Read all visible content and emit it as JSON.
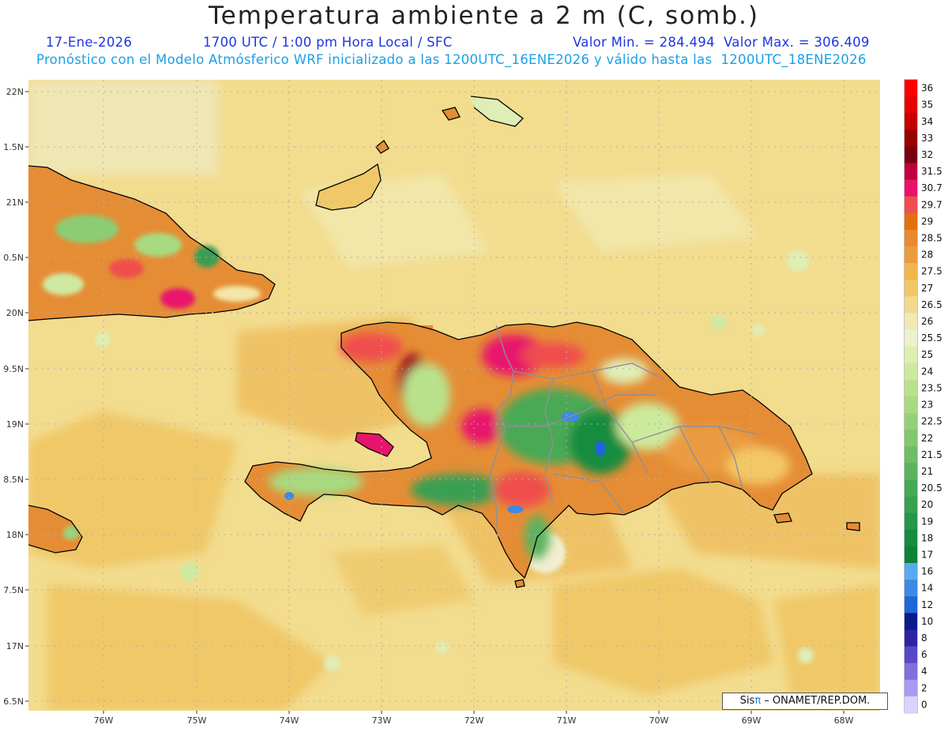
{
  "header": {
    "title": "Temperatura ambiente a 2 m (C, somb.)",
    "date": "17-Ene-2026",
    "time": "1700 UTC / 1:00 pm Hora Local / SFC",
    "minmax": "Valor Min. = 284.494  Valor Max. = 306.409",
    "model_line": "Pronóstico con el Modelo Atmósferico WRF inicializado a las 1200UTC_16ENE2026 y válido hasta las  1200UTC_18ENE2026"
  },
  "map": {
    "lon_labels": [
      "76W",
      "75W",
      "74W",
      "73W",
      "72W",
      "71W",
      "70W",
      "69W",
      "68W"
    ],
    "lat_labels": [
      "22N",
      "1.5N",
      "21N",
      "0.5N",
      "20N",
      "9.5N",
      "19N",
      "8.5N",
      "18N",
      "7.5N",
      "17N",
      "6.5N"
    ],
    "grid": true
  },
  "legend": {
    "items": [
      {
        "label": "36",
        "color": "#ff0000"
      },
      {
        "label": "35",
        "color": "#e60000"
      },
      {
        "label": "34",
        "color": "#c40000"
      },
      {
        "label": "33",
        "color": "#990000"
      },
      {
        "label": "32",
        "color": "#7a0010"
      },
      {
        "label": "31.5",
        "color": "#c0003c"
      },
      {
        "label": "30.7",
        "color": "#e8146c"
      },
      {
        "label": "29.7",
        "color": "#f04e4e"
      },
      {
        "label": "29",
        "color": "#e2700e"
      },
      {
        "label": "28.5",
        "color": "#e88a2e"
      },
      {
        "label": "28",
        "color": "#eb9c43"
      },
      {
        "label": "27.5",
        "color": "#f0b64c"
      },
      {
        "label": "27",
        "color": "#f3c765"
      },
      {
        "label": "26.5",
        "color": "#f2da8d"
      },
      {
        "label": "26",
        "color": "#f2e8b4"
      },
      {
        "label": "25.5",
        "color": "#eff0cc"
      },
      {
        "label": "25",
        "color": "#dcefb0"
      },
      {
        "label": "24",
        "color": "#ccea9c"
      },
      {
        "label": "23.5",
        "color": "#b9e28d"
      },
      {
        "label": "23",
        "color": "#a8da80"
      },
      {
        "label": "22.5",
        "color": "#95d077"
      },
      {
        "label": "22",
        "color": "#83c76e"
      },
      {
        "label": "21.5",
        "color": "#6fbd66"
      },
      {
        "label": "21",
        "color": "#5bb35e"
      },
      {
        "label": "20.5",
        "color": "#48a955"
      },
      {
        "label": "20",
        "color": "#38a04f"
      },
      {
        "label": "19",
        "color": "#269648"
      },
      {
        "label": "18",
        "color": "#168c41"
      },
      {
        "label": "17",
        "color": "#0c8338"
      },
      {
        "label": "16",
        "color": "#5aa9f0"
      },
      {
        "label": "14",
        "color": "#3c8ae4"
      },
      {
        "label": "12",
        "color": "#1f66d6"
      },
      {
        "label": "10",
        "color": "#0a1a8a"
      },
      {
        "label": "8",
        "color": "#2c24a6"
      },
      {
        "label": "6",
        "color": "#5848c6"
      },
      {
        "label": "4",
        "color": "#8070dc"
      },
      {
        "label": "2",
        "color": "#a89af0"
      },
      {
        "label": "0",
        "color": "#d8d4fc"
      }
    ]
  },
  "credit": {
    "sis": "Sis",
    "pi": "π",
    "rest": "– ONAMET/REP.DOM."
  }
}
